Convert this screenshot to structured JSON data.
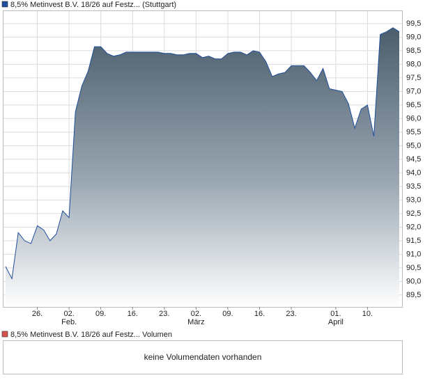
{
  "chart_data": {
    "type": "area",
    "series": [
      {
        "name": "8,5% Metinvest B.V. 18/26 auf Festz... (Stuttgart)",
        "color": "#1f4e9c",
        "values": [
          90.55,
          90.1,
          91.8,
          91.5,
          91.4,
          92.05,
          91.9,
          91.5,
          91.75,
          92.6,
          92.35,
          96.25,
          97.2,
          97.75,
          98.65,
          98.65,
          98.4,
          98.3,
          98.35,
          98.45,
          98.45,
          98.45,
          98.45,
          98.45,
          98.45,
          98.4,
          98.4,
          98.35,
          98.35,
          98.4,
          98.4,
          98.25,
          98.3,
          98.2,
          98.2,
          98.4,
          98.45,
          98.45,
          98.35,
          98.5,
          98.45,
          98.1,
          97.55,
          97.65,
          97.7,
          97.95,
          97.95,
          97.95,
          97.7,
          97.4,
          97.85,
          97.1,
          97.05,
          97.0,
          96.55,
          95.65,
          96.35,
          96.5,
          95.35,
          99.1,
          99.2,
          99.35,
          99.2
        ]
      }
    ],
    "categories": [
      null,
      null,
      null,
      null,
      null,
      "26.",
      null,
      null,
      null,
      null,
      "02.",
      null,
      null,
      null,
      null,
      "09.",
      null,
      null,
      null,
      null,
      "16.",
      null,
      null,
      null,
      null,
      "23.",
      null,
      null,
      null,
      null,
      "02.",
      null,
      null,
      null,
      null,
      "09.",
      null,
      null,
      null,
      null,
      "16.",
      null,
      null,
      null,
      null,
      "23.",
      null,
      null,
      null,
      null,
      null,
      null,
      "01.",
      null,
      null,
      null,
      null,
      "10.",
      null,
      null,
      null,
      null,
      null
    ],
    "sub_categories": [
      null,
      null,
      null,
      null,
      null,
      null,
      null,
      null,
      null,
      null,
      "Feb.",
      null,
      null,
      null,
      null,
      null,
      null,
      null,
      null,
      null,
      null,
      null,
      null,
      null,
      null,
      null,
      null,
      null,
      null,
      null,
      "März",
      null,
      null,
      null,
      null,
      null,
      null,
      null,
      null,
      null,
      null,
      null,
      null,
      null,
      null,
      null,
      null,
      null,
      null,
      null,
      null,
      null,
      "April",
      null,
      null,
      null,
      null,
      null,
      null,
      null,
      null,
      null,
      null
    ],
    "ylim": [
      89.06,
      99.96
    ],
    "yticks": [
      {
        "value": 89.5,
        "label": "89,5"
      },
      {
        "value": 90.0,
        "label": "90,0"
      },
      {
        "value": 90.5,
        "label": "90,5"
      },
      {
        "value": 91.0,
        "label": "91,0"
      },
      {
        "value": 91.5,
        "label": "91,5"
      },
      {
        "value": 92.0,
        "label": "92,0"
      },
      {
        "value": 92.5,
        "label": "92,5"
      },
      {
        "value": 93.0,
        "label": "93,0"
      },
      {
        "value": 93.5,
        "label": "93,5"
      },
      {
        "value": 94.0,
        "label": "94,0"
      },
      {
        "value": 94.5,
        "label": "94,5"
      },
      {
        "value": 95.0,
        "label": "95,0"
      },
      {
        "value": 95.5,
        "label": "95,5"
      },
      {
        "value": 96.0,
        "label": "96,0"
      },
      {
        "value": 96.5,
        "label": "96,5"
      },
      {
        "value": 97.0,
        "label": "97,0"
      },
      {
        "value": 97.5,
        "label": "97,5"
      },
      {
        "value": 98.0,
        "label": "98,0"
      },
      {
        "value": 98.5,
        "label": "98,5"
      },
      {
        "value": 99.0,
        "label": "99,0"
      },
      {
        "value": 99.5,
        "label": "99,5"
      }
    ],
    "grid": true,
    "volume": {
      "name": "8,5% Metinvest B.V. 18/26 auf Festz... Volumen",
      "color": "#d9534f",
      "message": "keine Volumendaten vorhanden"
    }
  }
}
